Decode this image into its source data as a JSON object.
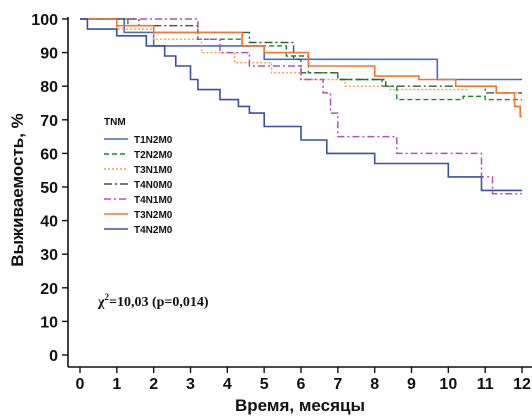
{
  "chart_data": {
    "type": "line",
    "subtype": "kaplan-meier",
    "xlabel": "Время, месяцы",
    "ylabel": "Выживаемость, %",
    "xlim": [
      0,
      12
    ],
    "ylim": [
      0,
      100
    ],
    "xticks": [
      0,
      1,
      2,
      3,
      4,
      5,
      6,
      7,
      8,
      9,
      10,
      11,
      12
    ],
    "yticks": [
      0,
      10,
      20,
      30,
      40,
      50,
      60,
      70,
      80,
      90,
      100
    ],
    "grid": false,
    "legend": {
      "title": "TNM",
      "position": "center-left"
    },
    "annotation": {
      "chi": "χ",
      "sup": "2",
      "rest": "=10,03 (p=0,014)"
    },
    "series": [
      {
        "name": "T1N2M0",
        "color": "#4a6fb5",
        "dash": "solid",
        "width": 1.6,
        "points": [
          [
            0,
            100
          ],
          [
            1.2,
            100
          ],
          [
            1.2,
            96
          ],
          [
            2.0,
            96
          ],
          [
            2.0,
            92
          ],
          [
            5.0,
            92
          ],
          [
            5.0,
            88
          ],
          [
            9.7,
            88
          ],
          [
            9.7,
            82
          ],
          [
            12,
            82
          ]
        ]
      },
      {
        "name": "T2N2M0",
        "color": "#1a8a2e",
        "dash": "5,3",
        "width": 1.4,
        "points": [
          [
            0,
            100
          ],
          [
            1.3,
            100
          ],
          [
            1.3,
            98
          ],
          [
            2.0,
            98
          ],
          [
            2.0,
            96
          ],
          [
            3.2,
            96
          ],
          [
            3.2,
            94
          ],
          [
            4.4,
            94
          ],
          [
            4.4,
            92
          ],
          [
            5.6,
            92
          ],
          [
            5.6,
            89
          ],
          [
            6.2,
            89
          ],
          [
            6.2,
            84
          ],
          [
            7.0,
            84
          ],
          [
            7.0,
            82
          ],
          [
            8.2,
            82
          ],
          [
            8.2,
            80
          ],
          [
            8.6,
            80
          ],
          [
            8.6,
            76
          ],
          [
            10.4,
            76
          ],
          [
            10.4,
            77
          ],
          [
            11.0,
            77
          ],
          [
            11.0,
            76
          ],
          [
            12,
            76
          ]
        ]
      },
      {
        "name": "T3N1M0",
        "color": "#f0a040",
        "dash": "2,2",
        "width": 1.4,
        "points": [
          [
            0,
            100
          ],
          [
            1.0,
            100
          ],
          [
            1.0,
            97
          ],
          [
            2.0,
            97
          ],
          [
            2.0,
            94
          ],
          [
            3.3,
            94
          ],
          [
            3.3,
            90
          ],
          [
            4.2,
            90
          ],
          [
            4.2,
            87
          ],
          [
            5.2,
            87
          ],
          [
            5.2,
            84
          ],
          [
            6.0,
            84
          ],
          [
            6.0,
            82
          ],
          [
            7.2,
            82
          ],
          [
            7.2,
            80
          ],
          [
            8.4,
            80
          ],
          [
            8.4,
            79
          ],
          [
            10.5,
            79
          ],
          [
            10.5,
            80
          ],
          [
            11.3,
            80
          ],
          [
            11.3,
            78
          ],
          [
            12,
            78
          ]
        ]
      },
      {
        "name": "T4N0M0",
        "color": "#3a5a3a",
        "dash": "8,3,2,3",
        "width": 1.4,
        "points": [
          [
            0,
            100
          ],
          [
            1.6,
            100
          ],
          [
            1.6,
            98
          ],
          [
            3.2,
            98
          ],
          [
            3.2,
            96
          ],
          [
            4.6,
            96
          ],
          [
            4.6,
            93
          ],
          [
            5.8,
            93
          ],
          [
            5.8,
            88
          ],
          [
            6.0,
            88
          ],
          [
            6.0,
            84
          ],
          [
            7.0,
            84
          ],
          [
            7.0,
            82
          ],
          [
            8.3,
            82
          ],
          [
            8.3,
            80
          ],
          [
            9.6,
            80
          ],
          [
            9.6,
            80
          ],
          [
            11.0,
            80
          ],
          [
            11.0,
            78
          ],
          [
            12,
            78
          ]
        ]
      },
      {
        "name": "T4N1M0",
        "color": "#b050c0",
        "dash": "7,3,2,3",
        "width": 1.5,
        "points": [
          [
            0,
            100
          ],
          [
            3.2,
            100
          ],
          [
            3.2,
            94
          ],
          [
            3.8,
            94
          ],
          [
            3.8,
            90
          ],
          [
            4.6,
            90
          ],
          [
            4.6,
            86
          ],
          [
            6.0,
            86
          ],
          [
            6.0,
            82
          ],
          [
            6.6,
            82
          ],
          [
            6.6,
            78
          ],
          [
            6.8,
            78
          ],
          [
            6.8,
            72
          ],
          [
            7.0,
            72
          ],
          [
            7.0,
            65
          ],
          [
            8.6,
            65
          ],
          [
            8.6,
            60
          ],
          [
            10.9,
            60
          ],
          [
            10.9,
            53
          ],
          [
            11.2,
            53
          ],
          [
            11.2,
            48
          ],
          [
            12,
            48
          ]
        ]
      },
      {
        "name": "T3N2M0",
        "color": "#f07830",
        "dash": "solid",
        "width": 1.6,
        "points": [
          [
            0,
            100
          ],
          [
            1.0,
            100
          ],
          [
            1.0,
            98
          ],
          [
            2.0,
            98
          ],
          [
            2.0,
            96
          ],
          [
            4.4,
            96
          ],
          [
            4.4,
            92
          ],
          [
            5.0,
            92
          ],
          [
            5.0,
            90
          ],
          [
            6.2,
            90
          ],
          [
            6.2,
            86
          ],
          [
            8.0,
            86
          ],
          [
            8.0,
            83
          ],
          [
            9.2,
            83
          ],
          [
            9.2,
            82
          ],
          [
            10.2,
            82
          ],
          [
            10.2,
            80
          ],
          [
            11.3,
            80
          ],
          [
            11.3,
            78
          ],
          [
            11.8,
            78
          ],
          [
            11.8,
            74
          ],
          [
            11.95,
            74
          ],
          [
            11.95,
            71
          ],
          [
            12,
            71
          ]
        ]
      },
      {
        "name": "T4N2M0",
        "color": "#3a4fa8",
        "dash": "solid",
        "width": 1.6,
        "points": [
          [
            0,
            100
          ],
          [
            0.2,
            100
          ],
          [
            0.2,
            97
          ],
          [
            1.0,
            97
          ],
          [
            1.0,
            95
          ],
          [
            1.8,
            95
          ],
          [
            1.8,
            92
          ],
          [
            2.3,
            92
          ],
          [
            2.3,
            89
          ],
          [
            2.6,
            89
          ],
          [
            2.6,
            86
          ],
          [
            3.0,
            86
          ],
          [
            3.0,
            82
          ],
          [
            3.2,
            82
          ],
          [
            3.2,
            79
          ],
          [
            3.8,
            79
          ],
          [
            3.8,
            76
          ],
          [
            4.3,
            76
          ],
          [
            4.3,
            74
          ],
          [
            4.6,
            74
          ],
          [
            4.6,
            72
          ],
          [
            5.0,
            72
          ],
          [
            5.0,
            68
          ],
          [
            6.0,
            68
          ],
          [
            6.0,
            64
          ],
          [
            6.7,
            64
          ],
          [
            6.7,
            60
          ],
          [
            8.0,
            60
          ],
          [
            8.0,
            57
          ],
          [
            10.0,
            57
          ],
          [
            10.0,
            53
          ],
          [
            10.9,
            53
          ],
          [
            10.9,
            49
          ],
          [
            12,
            49
          ]
        ]
      }
    ]
  }
}
